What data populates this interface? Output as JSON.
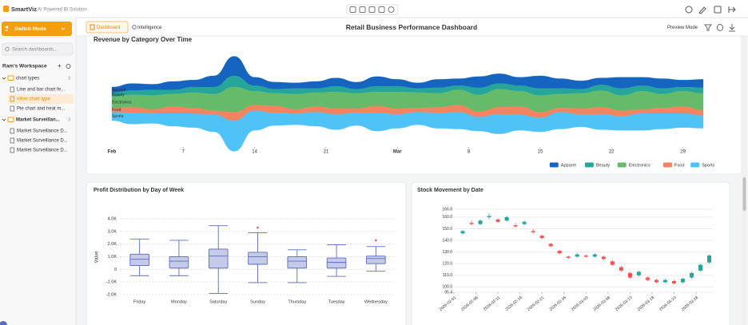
{
  "app": {
    "name": "SmartViz",
    "tagline": "AI Powered BI Solution"
  },
  "sidebar": {
    "switch_mode": "Switch Mode",
    "search_placeholder": "Search dashboards...",
    "workspace": "Ram's Workspace",
    "folders": [
      {
        "name": "chart types",
        "count": 3,
        "items": [
          "Line and bar chart fe...",
          "other chart type",
          "Pie chart and heat m..."
        ]
      },
      {
        "name": "Market Surveillan...",
        "count": 3,
        "items": [
          "Market Surveillance D...",
          "Market Surveillance D...",
          "Market Surveillance D..."
        ]
      }
    ]
  },
  "header": {
    "tabs": [
      "Dashboard",
      "Intelligence"
    ],
    "title": "Retail Business Performance Dashboard",
    "preview": "Preview Mode"
  },
  "chart_data": [
    {
      "type": "streamgraph",
      "title": "Revenue by Category Over Time",
      "x": [
        0,
        2,
        4,
        6,
        8,
        10,
        12,
        14,
        16,
        18,
        20,
        22,
        24,
        26,
        28,
        30,
        32,
        34,
        36,
        38,
        40,
        42,
        44,
        46,
        48,
        50,
        52,
        54,
        56,
        58
      ],
      "xlim": [
        0,
        58
      ],
      "xticks": [
        {
          "value": 0,
          "label": "Feb"
        },
        7,
        14,
        21,
        {
          "value": 28,
          "label": "Mar"
        },
        {
          "value": 35,
          "label": "8"
        },
        {
          "value": 42,
          "label": "15"
        },
        {
          "value": 49,
          "label": "22"
        },
        {
          "value": 56,
          "label": "29"
        }
      ],
      "legend": "bottom-right",
      "series": [
        {
          "name": "Apparel",
          "color": "#1565c0",
          "values": [
            4,
            5,
            4,
            6,
            5,
            8,
            14,
            6,
            5,
            4,
            5,
            6,
            5,
            7,
            5,
            4,
            6,
            5,
            8,
            7,
            6,
            9,
            7,
            6,
            5,
            8,
            6,
            7,
            5,
            6
          ]
        },
        {
          "name": "Beauty",
          "color": "#26a69a",
          "values": [
            3,
            3,
            4,
            3,
            4,
            5,
            8,
            4,
            3,
            4,
            3,
            4,
            3,
            4,
            4,
            3,
            4,
            3,
            5,
            4,
            4,
            5,
            4,
            3,
            4,
            5,
            4,
            4,
            3,
            4
          ]
        },
        {
          "name": "Electronics",
          "color": "#66bb6a",
          "values": [
            8,
            9,
            10,
            9,
            11,
            12,
            18,
            10,
            9,
            11,
            10,
            12,
            11,
            10,
            12,
            11,
            10,
            11,
            12,
            13,
            11,
            12,
            10,
            11,
            12,
            11,
            13,
            10,
            11,
            12
          ]
        },
        {
          "name": "Food",
          "color": "#f4845f",
          "values": [
            3,
            4,
            3,
            5,
            4,
            3,
            6,
            4,
            5,
            3,
            4,
            4,
            3,
            5,
            4,
            3,
            4,
            5,
            4,
            5,
            6,
            4,
            3,
            4,
            5,
            4,
            3,
            4,
            5,
            4
          ]
        },
        {
          "name": "Sports",
          "color": "#4fc3f7",
          "values": [
            6,
            8,
            7,
            9,
            10,
            12,
            22,
            14,
            9,
            8,
            10,
            11,
            9,
            13,
            10,
            9,
            11,
            12,
            10,
            14,
            11,
            10,
            12,
            9,
            11,
            10,
            12,
            11,
            10,
            9
          ]
        }
      ]
    },
    {
      "type": "box",
      "title": "Profit Distribution by Day of Week",
      "ylabel": "Value",
      "categories": [
        "Friday",
        "Monday",
        "Saturday",
        "Sunday",
        "Thursday",
        "Tuesday",
        "Wednesday"
      ],
      "boxes": [
        {
          "min": -500,
          "q1": 300,
          "median": 800,
          "q3": 1200,
          "max": 2400,
          "outliers": []
        },
        {
          "min": -500,
          "q1": 100,
          "median": 650,
          "q3": 1000,
          "max": 2300,
          "outliers": []
        },
        {
          "min": -1900,
          "q1": 100,
          "median": 1050,
          "q3": 1600,
          "max": 3450,
          "outliers": []
        },
        {
          "min": -1050,
          "q1": 400,
          "median": 1000,
          "q3": 1350,
          "max": 2900,
          "outliers": [
            3300
          ]
        },
        {
          "min": -1050,
          "q1": 100,
          "median": 650,
          "q3": 1000,
          "max": 1550,
          "outliers": []
        },
        {
          "min": -550,
          "q1": 100,
          "median": 550,
          "q3": 900,
          "max": 1950,
          "outliers": []
        },
        {
          "min": -150,
          "q1": 450,
          "median": 850,
          "q3": 1050,
          "max": 1800,
          "outliers": [
            2300
          ]
        }
      ],
      "color": "#c5cae9",
      "edge_color": "#5c6bc0",
      "outlier_color": "#ef5350",
      "ylim": [
        -2000,
        4800
      ],
      "yticks": [
        {
          "value": -2000,
          "label": "-2.0K"
        },
        {
          "value": -1000,
          "label": "-1.0K"
        },
        0,
        {
          "value": 1000,
          "label": "1.0K"
        },
        {
          "value": 2000,
          "label": "2.0K"
        },
        {
          "value": 3000,
          "label": "3.0K"
        },
        {
          "value": 4000,
          "label": "4.0K"
        }
      ],
      "grid": true
    },
    {
      "type": "candlestick",
      "title": "Stock Movement by Date",
      "x": [
        "2026-02-03",
        "2026-02-05",
        "2026-02-07",
        "2026-02-09",
        "2026-02-11",
        "2026-02-13",
        "2026-02-15",
        "2026-02-17",
        "2026-02-19",
        "2026-02-21",
        "2026-02-23",
        "2026-02-25",
        "2026-02-27",
        "2026-03-01",
        "2026-03-03",
        "2026-03-05",
        "2026-03-07",
        "2026-03-09",
        "2026-03-11",
        "2026-03-13",
        "2026-03-15",
        "2026-03-17",
        "2026-03-19",
        "2026-03-21",
        "2026-03-23",
        "2026-03-25",
        "2026-03-27",
        "2026-03-29",
        "2026-03-31"
      ],
      "open": [
        146,
        155,
        154,
        160,
        158,
        157,
        153,
        154,
        148,
        144,
        137,
        131,
        126,
        126,
        127,
        126,
        126,
        122,
        117,
        112,
        110,
        108,
        106,
        104,
        105,
        104,
        108,
        114,
        121
      ],
      "high": [
        149,
        157,
        158,
        163,
        159,
        161,
        155,
        157,
        150,
        145,
        138,
        132,
        127,
        129,
        128,
        129,
        127,
        123,
        118,
        113,
        114,
        109,
        107,
        107,
        106,
        108,
        113,
        120,
        128
      ],
      "low": [
        145,
        153,
        153,
        158,
        155,
        156,
        151,
        153,
        146,
        141,
        134,
        128,
        124,
        125,
        125,
        125,
        123,
        118,
        113,
        107,
        109,
        105,
        103,
        103,
        102,
        103,
        107,
        113,
        120
      ],
      "close": [
        148,
        154,
        157,
        161,
        156,
        160,
        152,
        156,
        147,
        142,
        135,
        129,
        125,
        128,
        126,
        128,
        124,
        119,
        114,
        108,
        113,
        106,
        104,
        106,
        103,
        107,
        112,
        119,
        127
      ],
      "up_color": "#26a69a",
      "down_color": "#ef5350",
      "xlim": [
        "2026-02-01",
        "2026-04-01"
      ],
      "xticks": [
        "2026-02-01",
        "2026-02-06",
        "2026-02-11",
        "2026-02-16",
        "2026-02-21",
        "2026-02-26",
        "2026-03-03",
        "2026-03-08",
        "2026-03-13",
        "2026-03-18",
        "2026-03-23",
        "2026-03-28"
      ],
      "ylim": [
        95.4,
        166.8
      ],
      "yticks": [
        95.4,
        {
          "value": 100,
          "label": "100.0"
        },
        {
          "value": 110,
          "label": "110.0"
        },
        {
          "value": 120,
          "label": "120.0"
        },
        {
          "value": 130,
          "label": "130.0"
        },
        {
          "value": 140,
          "label": "140.0"
        },
        {
          "value": 150,
          "label": "150.0"
        },
        {
          "value": 160,
          "label": "160.0"
        },
        166.8
      ],
      "grid": true
    }
  ]
}
